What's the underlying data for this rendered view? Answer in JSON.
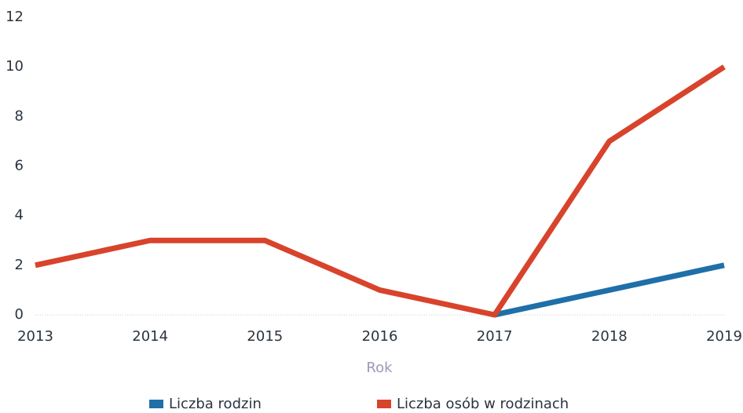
{
  "chart_data": {
    "type": "line",
    "x_label": "Rok",
    "categories": [
      "2013",
      "2014",
      "2015",
      "2016",
      "2017",
      "2018",
      "2019"
    ],
    "series": [
      {
        "name": "Liczba rodzin",
        "color": "#1f6fa8",
        "values": [
          null,
          null,
          null,
          null,
          0,
          1,
          2
        ]
      },
      {
        "name": "Liczba osób w rodzinach",
        "color": "#d8432c",
        "values": [
          2,
          3,
          3,
          1,
          0,
          7,
          10
        ]
      }
    ],
    "ylim": [
      0,
      12
    ],
    "yticks": [
      0,
      2,
      4,
      6,
      8,
      10,
      12
    ],
    "grid": false
  }
}
